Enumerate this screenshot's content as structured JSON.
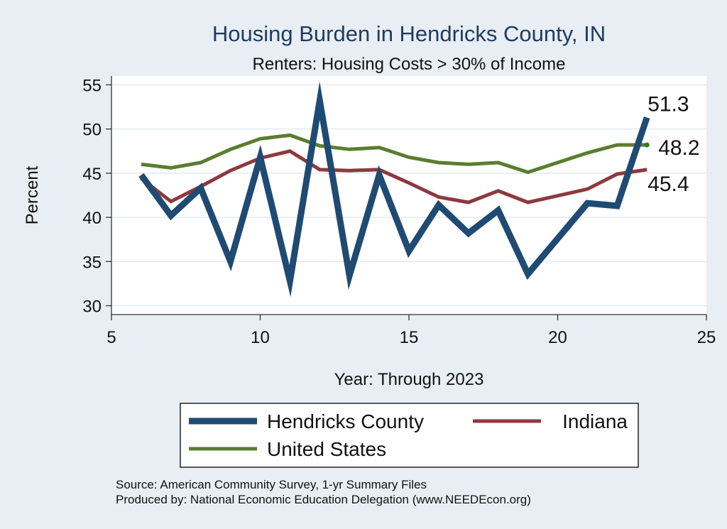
{
  "chart_data": {
    "type": "line",
    "title": "Housing Burden in Hendricks County, IN",
    "subtitle": "Renters: Housing Costs > 30% of Income",
    "xlabel": "Year: Through 2023",
    "ylabel": "Percent",
    "xlim": [
      5,
      25
    ],
    "ylim": [
      29,
      56
    ],
    "xticks": [
      5,
      10,
      15,
      20,
      25
    ],
    "yticks": [
      30,
      35,
      40,
      45,
      50,
      55
    ],
    "grid": true,
    "legend_position": "bottom",
    "series": [
      {
        "name": "Hendricks County",
        "color": "#1f4a72",
        "x": [
          6,
          7,
          8,
          9,
          10,
          11,
          12,
          13,
          14,
          15,
          16,
          17,
          18,
          19,
          21,
          22,
          23
        ],
        "y": [
          44.8,
          40.2,
          43.3,
          35.0,
          46.8,
          32.8,
          53.2,
          33.4,
          44.8,
          36.2,
          41.4,
          38.2,
          40.8,
          33.6,
          41.6,
          41.3,
          51.3
        ],
        "end_label": "51.3"
      },
      {
        "name": "Indiana",
        "color": "#8c3a3f",
        "x": [
          6,
          7,
          8,
          9,
          10,
          11,
          12,
          13,
          14,
          15,
          16,
          17,
          18,
          19,
          21,
          22,
          23
        ],
        "y": [
          44.4,
          41.8,
          43.5,
          45.3,
          46.7,
          47.5,
          45.4,
          45.3,
          45.4,
          43.9,
          42.3,
          41.7,
          43.0,
          41.7,
          43.2,
          44.9,
          45.4
        ],
        "end_label": "45.4"
      },
      {
        "name": "United States",
        "color": "#5a7d2f",
        "x": [
          6,
          7,
          8,
          9,
          10,
          11,
          12,
          13,
          14,
          15,
          16,
          17,
          18,
          19,
          21,
          22,
          23
        ],
        "y": [
          46.0,
          45.6,
          46.2,
          47.7,
          48.9,
          49.3,
          48.1,
          47.7,
          47.9,
          46.8,
          46.2,
          46.0,
          46.2,
          45.1,
          47.3,
          48.2,
          48.2
        ],
        "end_label": "48.2",
        "end_marker_color": "#2e7d1e"
      }
    ],
    "source_lines": [
      "Source: American Community Survey, 1-yr Summary Files",
      "Produced by: National Economic Education Delegation (www.NEEDEcon.org)"
    ]
  }
}
